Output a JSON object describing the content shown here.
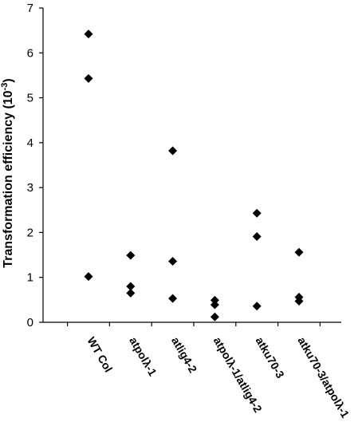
{
  "chart_data": {
    "type": "scatter",
    "title": "",
    "xlabel": "",
    "ylabel": "Transformation efficiency (10",
    "ylabel_superscript": "-3",
    "ylabel_suffix": ")",
    "ylim": [
      0,
      7
    ],
    "yticks": [
      "0",
      "1",
      "2",
      "3",
      "4",
      "5",
      "6",
      "7"
    ],
    "categories": [
      "WT Col",
      "atpolλ-1",
      "atlig4-2",
      "atpolλ-1/atlig4-2",
      "atku70-3",
      "atku70-3/atpolλ-1"
    ],
    "series": [
      {
        "marker": "diamond",
        "color": "#000000",
        "points": [
          {
            "category": "WT Col",
            "y": 6.42
          },
          {
            "category": "WT Col",
            "y": 5.43
          },
          {
            "category": "WT Col",
            "y": 1.02
          },
          {
            "category": "atpolλ-1",
            "y": 1.49
          },
          {
            "category": "atpolλ-1",
            "y": 0.8
          },
          {
            "category": "atpolλ-1",
            "y": 0.65
          },
          {
            "category": "atlig4-2",
            "y": 3.82
          },
          {
            "category": "atlig4-2",
            "y": 1.36
          },
          {
            "category": "atlig4-2",
            "y": 0.53
          },
          {
            "category": "atpolλ-1/atlig4-2",
            "y": 0.49
          },
          {
            "category": "atpolλ-1/atlig4-2",
            "y": 0.39
          },
          {
            "category": "atpolλ-1/atlig4-2",
            "y": 0.12
          },
          {
            "category": "atku70-3",
            "y": 2.43
          },
          {
            "category": "atku70-3",
            "y": 1.91
          },
          {
            "category": "atku70-3",
            "y": 0.36
          },
          {
            "category": "atku70-3/atpolλ-1",
            "y": 1.56
          },
          {
            "category": "atku70-3/atpolλ-1",
            "y": 0.56
          },
          {
            "category": "atku70-3/atpolλ-1",
            "y": 0.47
          }
        ]
      }
    ],
    "grid": false,
    "legend": "none"
  }
}
